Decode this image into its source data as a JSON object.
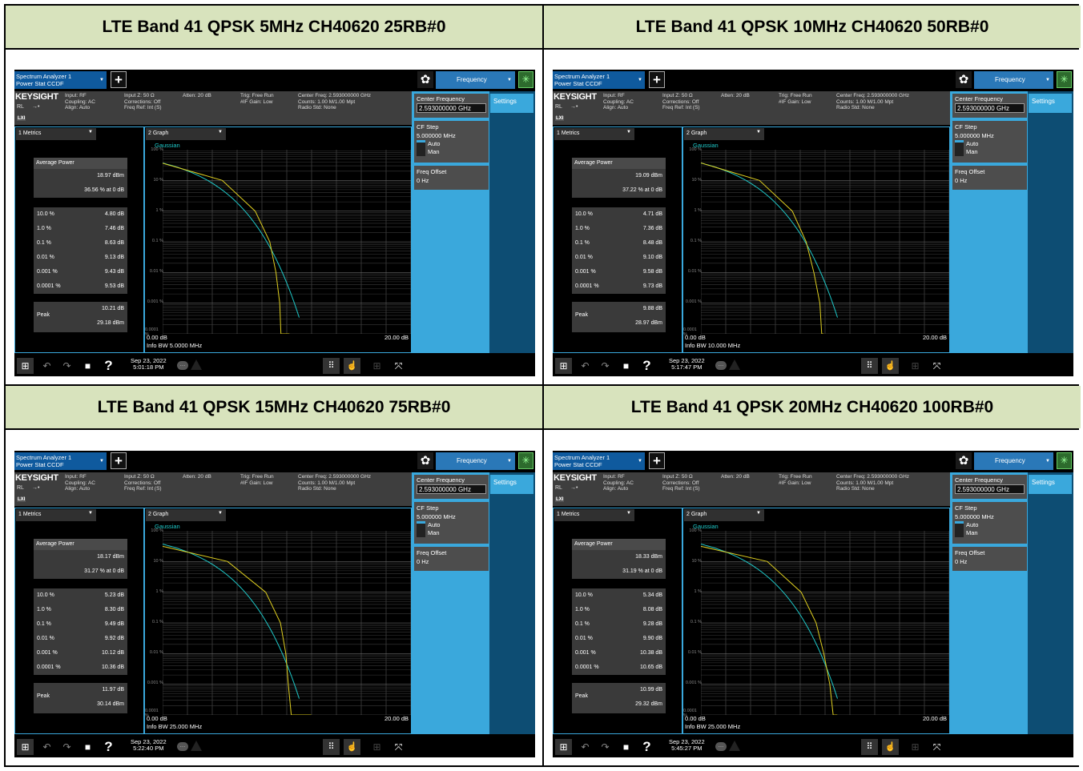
{
  "tables": [
    {
      "header": "LTE Band 41 QPSK 5MHz CH40620 25RB#0",
      "avg_dbm": "18.97 dBm",
      "avg_pct": "36.56 % at 0 dB",
      "metrics": [
        {
          "label": "10.0 %",
          "value": "4.80 dB"
        },
        {
          "label": "1.0 %",
          "value": "7.46 dB"
        },
        {
          "label": "0.1 %",
          "value": "8.63 dB"
        },
        {
          "label": "0.01 %",
          "value": "9.13 dB"
        },
        {
          "label": "0.001 %",
          "value": "9.43 dB"
        },
        {
          "label": "0.0001 %",
          "value": "9.53 dB"
        }
      ],
      "peak_db": "10.21 dB",
      "peak_dbm": "29.18 dBm",
      "info_bw": "Info BW 5.0000 MHz",
      "date": "Sep 23, 2022",
      "time": "5:01:18 PM"
    },
    {
      "header": "LTE Band 41 QPSK 10MHz CH40620 50RB#0",
      "avg_dbm": "19.09 dBm",
      "avg_pct": "37.22 % at 0 dB",
      "metrics": [
        {
          "label": "10.0 %",
          "value": "4.71 dB"
        },
        {
          "label": "1.0 %",
          "value": "7.36 dB"
        },
        {
          "label": "0.1 %",
          "value": "8.48 dB"
        },
        {
          "label": "0.01 %",
          "value": "9.10 dB"
        },
        {
          "label": "0.001 %",
          "value": "9.58 dB"
        },
        {
          "label": "0.0001 %",
          "value": "9.73 dB"
        }
      ],
      "peak_db": "9.88 dB",
      "peak_dbm": "28.97 dBm",
      "info_bw": "Info BW 10.000 MHz",
      "date": "Sep 23, 2022",
      "time": "5:17:47 PM"
    },
    {
      "header": "LTE Band 41 QPSK 15MHz CH40620 75RB#0",
      "avg_dbm": "18.17 dBm",
      "avg_pct": "31.27 % at 0 dB",
      "metrics": [
        {
          "label": "10.0 %",
          "value": "5.23 dB"
        },
        {
          "label": "1.0 %",
          "value": "8.30 dB"
        },
        {
          "label": "0.1 %",
          "value": "9.49 dB"
        },
        {
          "label": "0.01 %",
          "value": "9.92 dB"
        },
        {
          "label": "0.001 %",
          "value": "10.12 dB"
        },
        {
          "label": "0.0001 %",
          "value": "10.36 dB"
        }
      ],
      "peak_db": "11.97 dB",
      "peak_dbm": "30.14 dBm",
      "info_bw": "Info BW 25.000 MHz",
      "date": "Sep 23, 2022",
      "time": "5:22:40 PM"
    },
    {
      "header": "LTE Band 41 QPSK 20MHz CH40620 100RB#0",
      "avg_dbm": "18.33 dBm",
      "avg_pct": "31.19 % at 0 dB",
      "metrics": [
        {
          "label": "10.0 %",
          "value": "5.34 dB"
        },
        {
          "label": "1.0 %",
          "value": "8.08 dB"
        },
        {
          "label": "0.1 %",
          "value": "9.28 dB"
        },
        {
          "label": "0.01 %",
          "value": "9.90 dB"
        },
        {
          "label": "0.001 %",
          "value": "10.38 dB"
        },
        {
          "label": "0.0001 %",
          "value": "10.65 dB"
        }
      ],
      "peak_db": "10.99 dB",
      "peak_dbm": "29.32 dBm",
      "info_bw": "Info BW 25.000 MHz",
      "date": "Sep 23, 2022",
      "time": "5:45:27 PM"
    }
  ],
  "common": {
    "tab_line1": "Spectrum Analyzer 1",
    "tab_line2": "Power Stat CCDF",
    "plus": "+",
    "frequency_label": "Frequency",
    "logo": "KEYSIGHT",
    "rl": "RL",
    "arrow": "→•",
    "lxi": "LXI",
    "info_col1": "Input: RF\nCoupling: AC\nAlign: Auto",
    "info_col2": "Input Z: 50 Ω\nCorrections: Off\nFreq Ref: Int (S)",
    "info_col3": "Atten: 20 dB",
    "info_col4": "Trig: Free Run\n#IF Gain: Low",
    "info_col5": "Center Freq: 2.593000000 GHz\nCounts: 1.00 M/1.00 Mpt\nRadio Std: None",
    "center_freq_label": "Center Frequency",
    "center_freq_value": "2.593000000 GHz",
    "settings": "Settings",
    "cf_step_label": "CF Step",
    "cf_step_value": "5.000000 MHz",
    "auto": "Auto",
    "man": "Man",
    "freq_offset_label": "Freq Offset",
    "freq_offset_value": "0 Hz",
    "metrics_title": "1 Metrics",
    "avg_power": "Average Power",
    "peak": "Peak",
    "graph_title": "2 Graph",
    "gaussian": "Gaussian",
    "y_ticks": [
      "100 %",
      "10 %",
      "1 %",
      "0.1 %",
      "0.01 %",
      "0.001 %",
      "0.0001 %"
    ],
    "x_start": "0.00 dB",
    "x_end": "20.00 dB",
    "help": "?"
  },
  "colors": {
    "header_bg": "#d8e3bd",
    "accent_blue": "#3aa8dc",
    "gaussian_trace": "#1ec8c8",
    "measured_trace": "#e0d020"
  }
}
